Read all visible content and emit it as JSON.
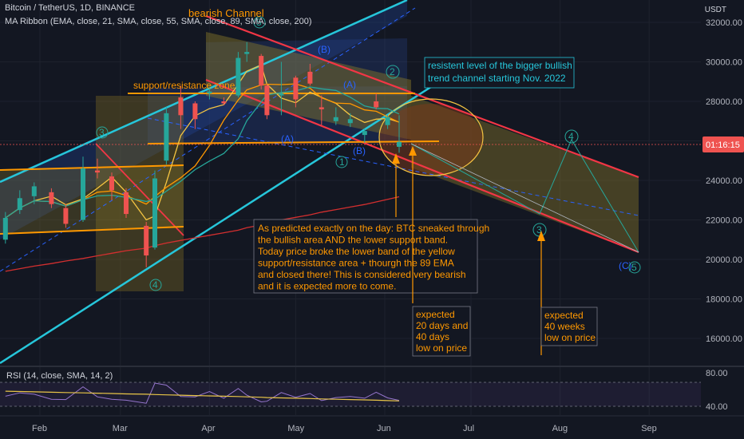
{
  "header": {
    "symbol_line": "Bitcoin / TetherUS, 1D, BINANCE",
    "indicator_line": "MA Ribbon (EMA, close, 21, SMA, close, 55, SMA, close, 89, SMA, close, 200)",
    "currency": "USDT",
    "rsi_label": "RSI (14, close, SMA, 14, 2)"
  },
  "colors": {
    "background": "#131722",
    "candle_up": "#26a69a",
    "candle_down": "#ef5350",
    "orange_annotation": "#ff9800",
    "channel_cyan": "#26c6da",
    "bearish_channel_red": "#f23645",
    "ema21": "#f5c542",
    "sma55": "#ff9800",
    "sma89": "#26a69a",
    "sma200": "#d32f2f",
    "rsi_line": "#e8c547"
  },
  "annotations": {
    "bearish_channel": "bearish Channel",
    "sr_zone": "support/resistance zone",
    "resistance_note_1": "resistent level of the bigger bullish",
    "resistance_note_2": "trend channel starting Nov. 2022",
    "prediction_lines": [
      "As predicted exactly on the day: BTC sneaked through",
      "the bullish area AND the lower support band.",
      "Today price broke the lower band of the yellow",
      "support/resistance area + thourgh the 89 EMA",
      "and closed there! This is considered very bearish",
      " and it is expected more to come."
    ],
    "expected_short": [
      "expected",
      "20 days and",
      "40 days",
      "low on price"
    ],
    "expected_long": [
      "expected",
      "40 weeks",
      "low on price"
    ],
    "wave_labels": [
      "3",
      "4",
      "5",
      "(B)",
      "(A)",
      "2",
      "1",
      "(B)",
      "(A)",
      "4",
      "3",
      "(C)",
      "5"
    ],
    "price_tag": "01:16:15"
  },
  "chart_data": {
    "type": "candlestick",
    "x_axis": {
      "ticks": [
        "Feb",
        "Mar",
        "Apr",
        "May",
        "Jun",
        "Jul",
        "Aug",
        "Sep"
      ]
    },
    "y_axis": {
      "ticks": [
        "32000.00",
        "30000.00",
        "28000.00",
        "26000.00",
        "24000.00",
        "22000.00",
        "20000.00",
        "18000.00",
        "16000.00"
      ],
      "ylim": [
        14800,
        32500
      ],
      "scale": "linear"
    },
    "last_close": 25950,
    "series_ohlc_approx": [
      {
        "date": "2023-01-20",
        "o": 21000,
        "h": 22400,
        "l": 20800,
        "c": 22100
      },
      {
        "date": "2023-01-25",
        "o": 22500,
        "h": 23500,
        "l": 22300,
        "c": 23100
      },
      {
        "date": "2023-01-30",
        "o": 23200,
        "h": 23900,
        "l": 22800,
        "c": 23700
      },
      {
        "date": "2023-02-05",
        "o": 23400,
        "h": 23600,
        "l": 22600,
        "c": 22800
      },
      {
        "date": "2023-02-10",
        "o": 22600,
        "h": 22800,
        "l": 21600,
        "c": 21800
      },
      {
        "date": "2023-02-16",
        "o": 22000,
        "h": 25200,
        "l": 21900,
        "c": 24600
      },
      {
        "date": "2023-02-21",
        "o": 24500,
        "h": 25100,
        "l": 24100,
        "c": 24400
      },
      {
        "date": "2023-02-26",
        "o": 24200,
        "h": 24400,
        "l": 23000,
        "c": 23500
      },
      {
        "date": "2023-03-03",
        "o": 23400,
        "h": 23600,
        "l": 22100,
        "c": 22300
      },
      {
        "date": "2023-03-10",
        "o": 21700,
        "h": 21900,
        "l": 19600,
        "c": 20200
      },
      {
        "date": "2023-03-13",
        "o": 20600,
        "h": 24500,
        "l": 20500,
        "c": 24100
      },
      {
        "date": "2023-03-17",
        "o": 25000,
        "h": 27700,
        "l": 24800,
        "c": 27400
      },
      {
        "date": "2023-03-22",
        "o": 28200,
        "h": 28800,
        "l": 26600,
        "c": 27300
      },
      {
        "date": "2023-03-27",
        "o": 27900,
        "h": 28000,
        "l": 26600,
        "c": 27100
      },
      {
        "date": "2023-04-01",
        "o": 28400,
        "h": 28700,
        "l": 28100,
        "c": 28500
      },
      {
        "date": "2023-04-06",
        "o": 28000,
        "h": 28200,
        "l": 27800,
        "c": 27900
      },
      {
        "date": "2023-04-11",
        "o": 28300,
        "h": 30500,
        "l": 28200,
        "c": 30200
      },
      {
        "date": "2023-04-14",
        "o": 30400,
        "h": 31000,
        "l": 30000,
        "c": 30500
      },
      {
        "date": "2023-04-19",
        "o": 30300,
        "h": 30400,
        "l": 28600,
        "c": 28800
      },
      {
        "date": "2023-04-21",
        "o": 28800,
        "h": 28900,
        "l": 27100,
        "c": 27300
      },
      {
        "date": "2023-04-26",
        "o": 28300,
        "h": 30000,
        "l": 27300,
        "c": 28400
      },
      {
        "date": "2023-05-01",
        "o": 29200,
        "h": 29300,
        "l": 27700,
        "c": 28100
      },
      {
        "date": "2023-05-06",
        "o": 29500,
        "h": 29900,
        "l": 28800,
        "c": 28900
      },
      {
        "date": "2023-05-10",
        "o": 27700,
        "h": 28300,
        "l": 26800,
        "c": 27600
      },
      {
        "date": "2023-05-15",
        "o": 27000,
        "h": 27700,
        "l": 26800,
        "c": 27200
      },
      {
        "date": "2023-05-20",
        "o": 26900,
        "h": 27400,
        "l": 26700,
        "c": 27100
      },
      {
        "date": "2023-05-25",
        "o": 26300,
        "h": 26600,
        "l": 25900,
        "c": 26500
      },
      {
        "date": "2023-05-29",
        "o": 28000,
        "h": 28400,
        "l": 27600,
        "c": 27700
      },
      {
        "date": "2023-06-02",
        "o": 26800,
        "h": 27300,
        "l": 26600,
        "c": 27200
      },
      {
        "date": "2023-06-06",
        "o": 25700,
        "h": 27300,
        "l": 25400,
        "c": 25950
      }
    ],
    "rsi": {
      "ticks": [
        "80.00",
        "40.00"
      ],
      "ylim": [
        25,
        90
      ]
    }
  }
}
